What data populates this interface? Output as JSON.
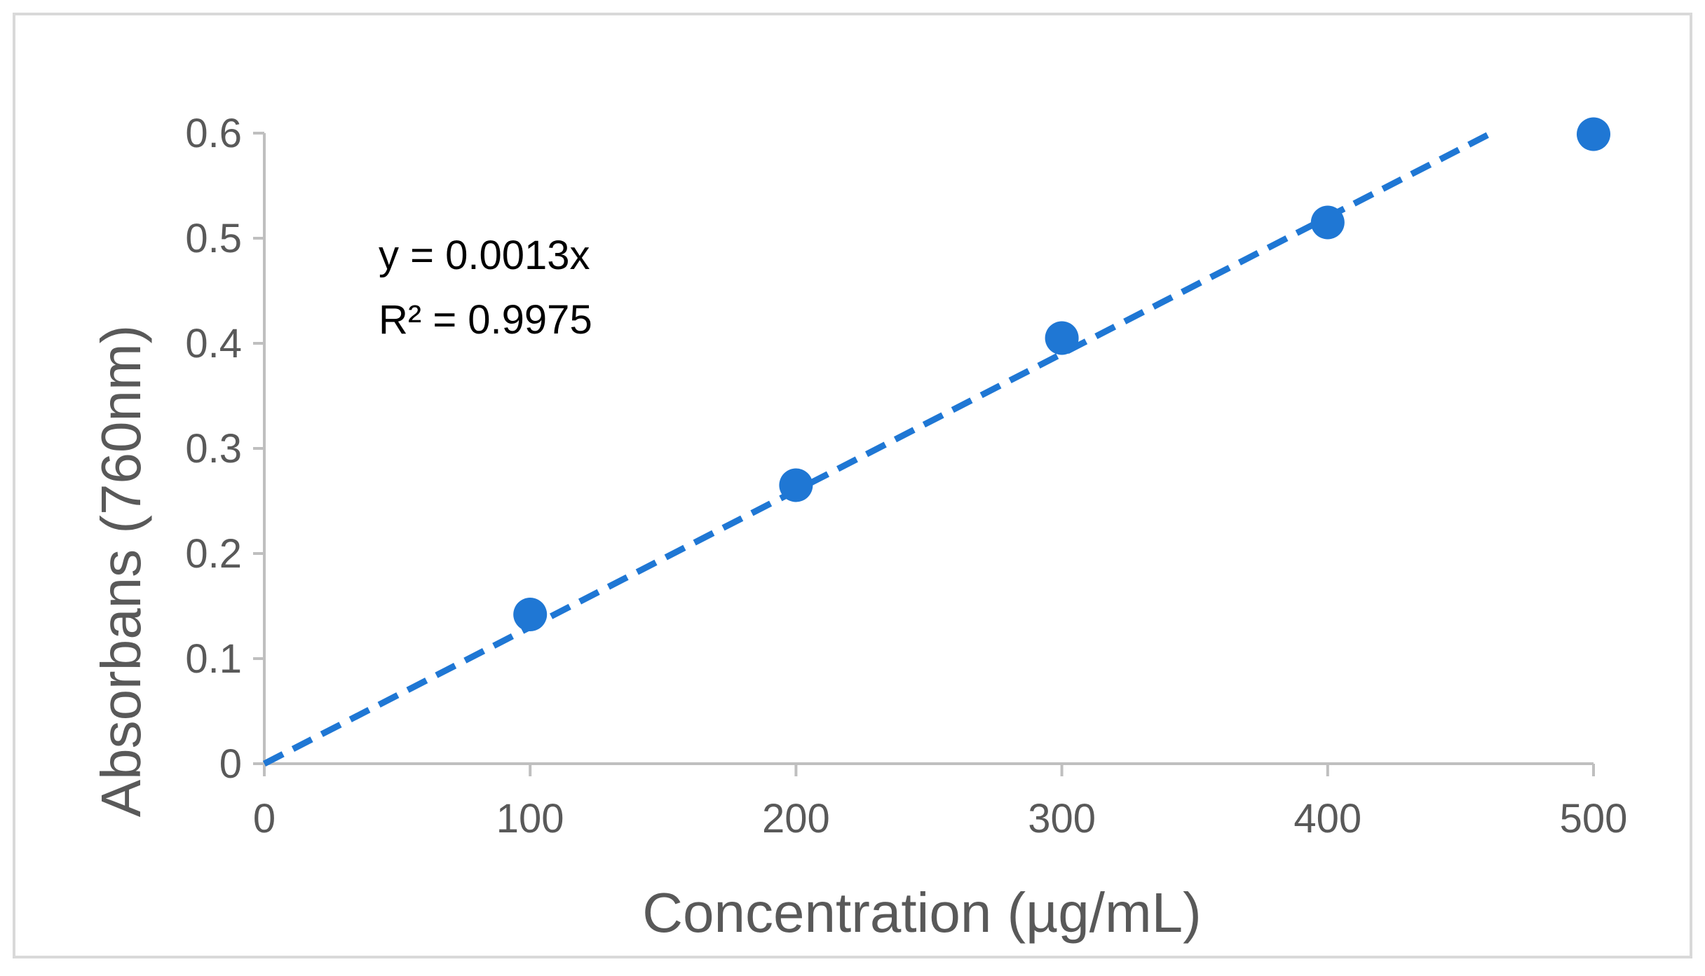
{
  "chart_data": {
    "type": "scatter",
    "title": "",
    "xlabel": "Concentration (µg/mL)",
    "ylabel": "Absorbans (760nm)",
    "xlim": [
      0,
      500
    ],
    "ylim": [
      0,
      0.6
    ],
    "x_ticks": [
      "0",
      "100",
      "200",
      "300",
      "400",
      "500"
    ],
    "y_ticks": [
      "0",
      "0.1",
      "0.2",
      "0.3",
      "0.4",
      "0.5",
      "0.6"
    ],
    "x_tick_values": [
      0,
      100,
      200,
      300,
      400,
      500
    ],
    "y_tick_values": [
      0,
      0.1,
      0.2,
      0.3,
      0.4,
      0.5,
      0.6
    ],
    "grid": false,
    "legend": "none",
    "series": [
      {
        "points": [
          {
            "x": 100,
            "y": 0.142
          },
          {
            "x": 200,
            "y": 0.265
          },
          {
            "x": 300,
            "y": 0.405
          },
          {
            "x": 400,
            "y": 0.515
          },
          {
            "x": 500,
            "y": 0.599
          }
        ],
        "color": "#1f77d4"
      }
    ],
    "trendline": {
      "type": "linear",
      "slope": 0.0013,
      "intercept": 0,
      "style": "dashed",
      "color": "#1f77d4",
      "equation_label": "y = 0.0013x",
      "r_squared_label": "R² = 0.9975"
    },
    "colors": {
      "axis": "#bfbfbf",
      "tick_label": "#595959",
      "axis_title": "#595959",
      "annotation": "#000000",
      "frame_border": "#d9d9d9"
    }
  }
}
